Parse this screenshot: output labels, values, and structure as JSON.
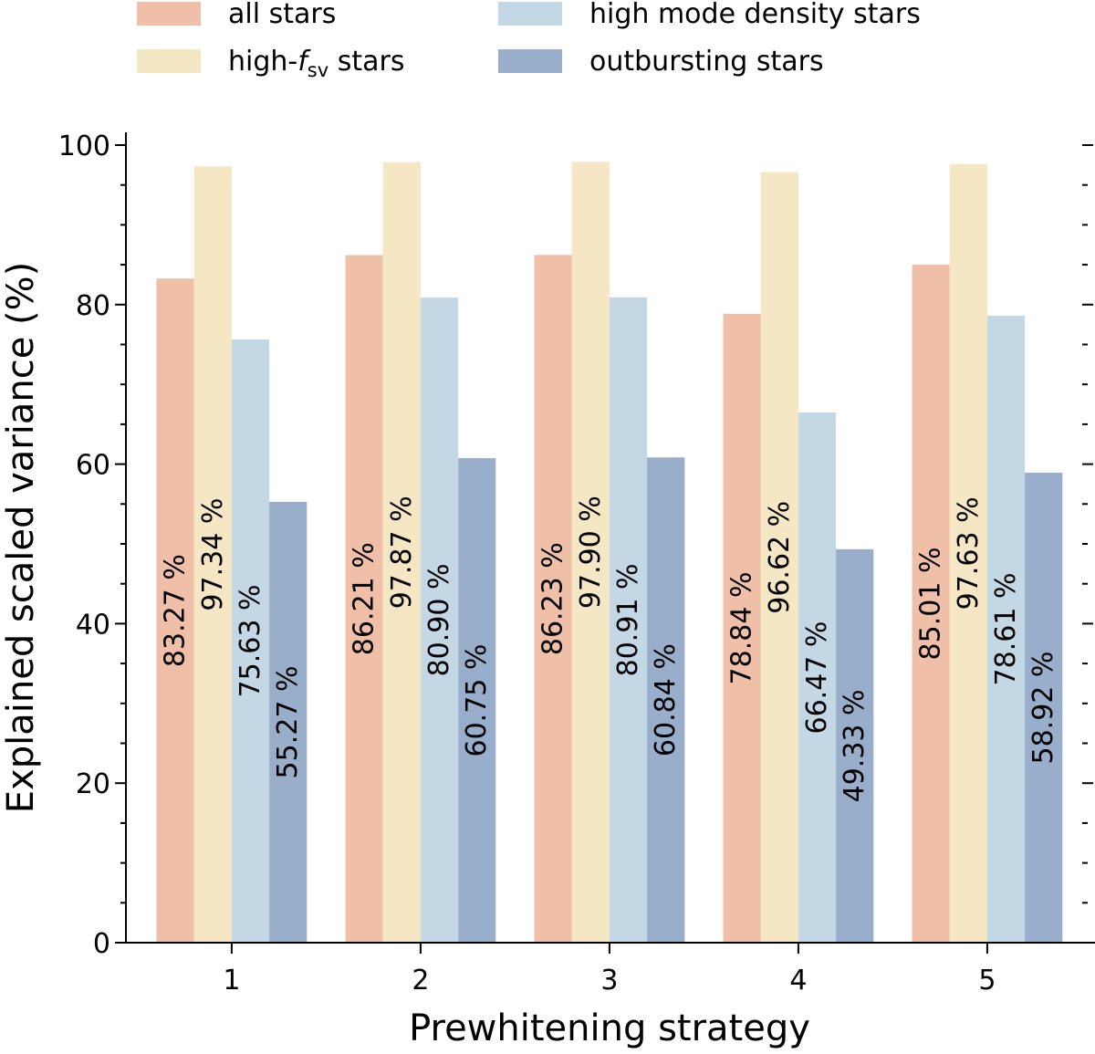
{
  "chart_data": {
    "type": "bar",
    "title": "",
    "xlabel": "Prewhitening strategy",
    "ylabel": "Explained scaled variance (%)",
    "categories": [
      "1",
      "2",
      "3",
      "4",
      "5"
    ],
    "ylim": [
      0,
      100
    ],
    "yticks": [
      0,
      20,
      40,
      60,
      80,
      100
    ],
    "grid": false,
    "legend_position": "top",
    "series": [
      {
        "name": "all stars",
        "color": "#f0bfa8",
        "values": [
          83.27,
          86.21,
          86.23,
          78.84,
          85.01
        ],
        "labels": [
          "83.27 %",
          "86.21 %",
          "86.23 %",
          "78.84 %",
          "85.01 %"
        ]
      },
      {
        "name": "high-f_sv stars",
        "color": "#f5e7c3",
        "values": [
          97.34,
          97.87,
          97.9,
          96.62,
          97.63
        ],
        "labels": [
          "97.34 %",
          "97.87 %",
          "97.90 %",
          "96.62 %",
          "97.63 %"
        ]
      },
      {
        "name": "high mode density stars",
        "color": "#c4d7e4",
        "values": [
          75.63,
          80.9,
          80.91,
          66.47,
          78.61
        ],
        "labels": [
          "75.63 %",
          "80.90 %",
          "80.91 %",
          "66.47 %",
          "78.61 %"
        ]
      },
      {
        "name": "outbursting stars",
        "color": "#99aecb",
        "values": [
          55.27,
          60.75,
          60.84,
          49.33,
          58.92
        ],
        "labels": [
          "55.27 %",
          "60.75 %",
          "60.84 %",
          "49.33 %",
          "58.92 %"
        ]
      }
    ],
    "legend": {
      "all": "all stars",
      "fsv_prefix": "high-",
      "fsv_symbol": "f",
      "fsv_subscript": "sv",
      "fsv_suffix": " stars",
      "mode": "high mode density stars",
      "outburst": "outbursting stars"
    }
  }
}
